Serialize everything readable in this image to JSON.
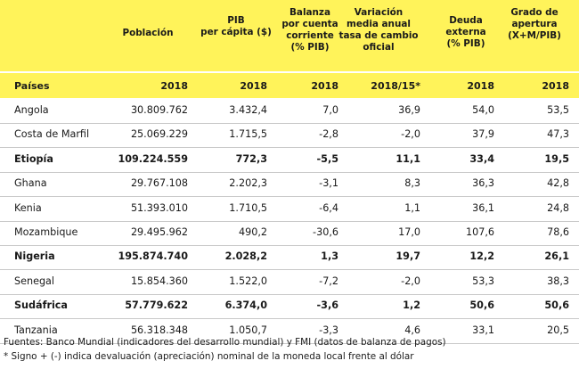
{
  "header": {
    "columns": [
      {
        "label": "Población"
      },
      {
        "label": "PIB\nper cápita ($)"
      },
      {
        "label": "Balanza\npor cuenta\ncorriente\n(% PIB)"
      },
      {
        "label": "Variación\nmedia anual\ntasa de cambio\noficial"
      },
      {
        "label": "Deuda\nexterna\n(% PIB)"
      },
      {
        "label": "Grado de\napertura\n(X+M/PIB)"
      }
    ]
  },
  "subheader": {
    "label": "Países",
    "years": [
      "2018",
      "2018",
      "2018",
      "2018/15*",
      "2018",
      "2018"
    ]
  },
  "rows": [
    {
      "country": "Angola",
      "bold": false,
      "values": [
        "30.809.762",
        "3.432,4",
        "7,0",
        "36,9",
        "54,0",
        "53,5"
      ]
    },
    {
      "country": "Costa de Marfil",
      "bold": false,
      "values": [
        "25.069.229",
        "1.715,5",
        "-2,8",
        "-2,0",
        "37,9",
        "47,3"
      ]
    },
    {
      "country": "Etiopía",
      "bold": true,
      "values": [
        "109.224.559",
        "772,3",
        "-5,5",
        "11,1",
        "33,4",
        "19,5"
      ]
    },
    {
      "country": "Ghana",
      "bold": false,
      "values": [
        "29.767.108",
        "2.202,3",
        "-3,1",
        "8,3",
        "36,3",
        "42,8"
      ]
    },
    {
      "country": "Kenia",
      "bold": false,
      "values": [
        "51.393.010",
        "1.710,5",
        "-6,4",
        "1,1",
        "36,1",
        "24,8"
      ]
    },
    {
      "country": "Mozambique",
      "bold": false,
      "values": [
        "29.495.962",
        "490,2",
        "-30,6",
        "17,0",
        "107,6",
        "78,6"
      ]
    },
    {
      "country": "Nigeria",
      "bold": true,
      "values": [
        "195.874.740",
        "2.028,2",
        "1,3",
        "19,7",
        "12,2",
        "26,1"
      ]
    },
    {
      "country": "Senegal",
      "bold": false,
      "values": [
        "15.854.360",
        "1.522,0",
        "-7,2",
        "-2,0",
        "53,3",
        "38,3"
      ]
    },
    {
      "country": "Sudáfrica",
      "bold": true,
      "values": [
        "57.779.622",
        "6.374,0",
        "-3,6",
        "1,2",
        "50,6",
        "50,6"
      ]
    },
    {
      "country": "Tanzania",
      "bold": false,
      "values": [
        "56.318.348",
        "1.050,7",
        "-3,3",
        "4,6",
        "33,1",
        "20,5"
      ]
    }
  ],
  "footnotes": [
    "Fuentes: Banco Mundial (indicadores del desarrollo mundial) y FMI (datos de balanza de pagos)",
    "* Signo + (-) indica devaluación (apreciación) nominal de la moneda local frente al dólar"
  ]
}
